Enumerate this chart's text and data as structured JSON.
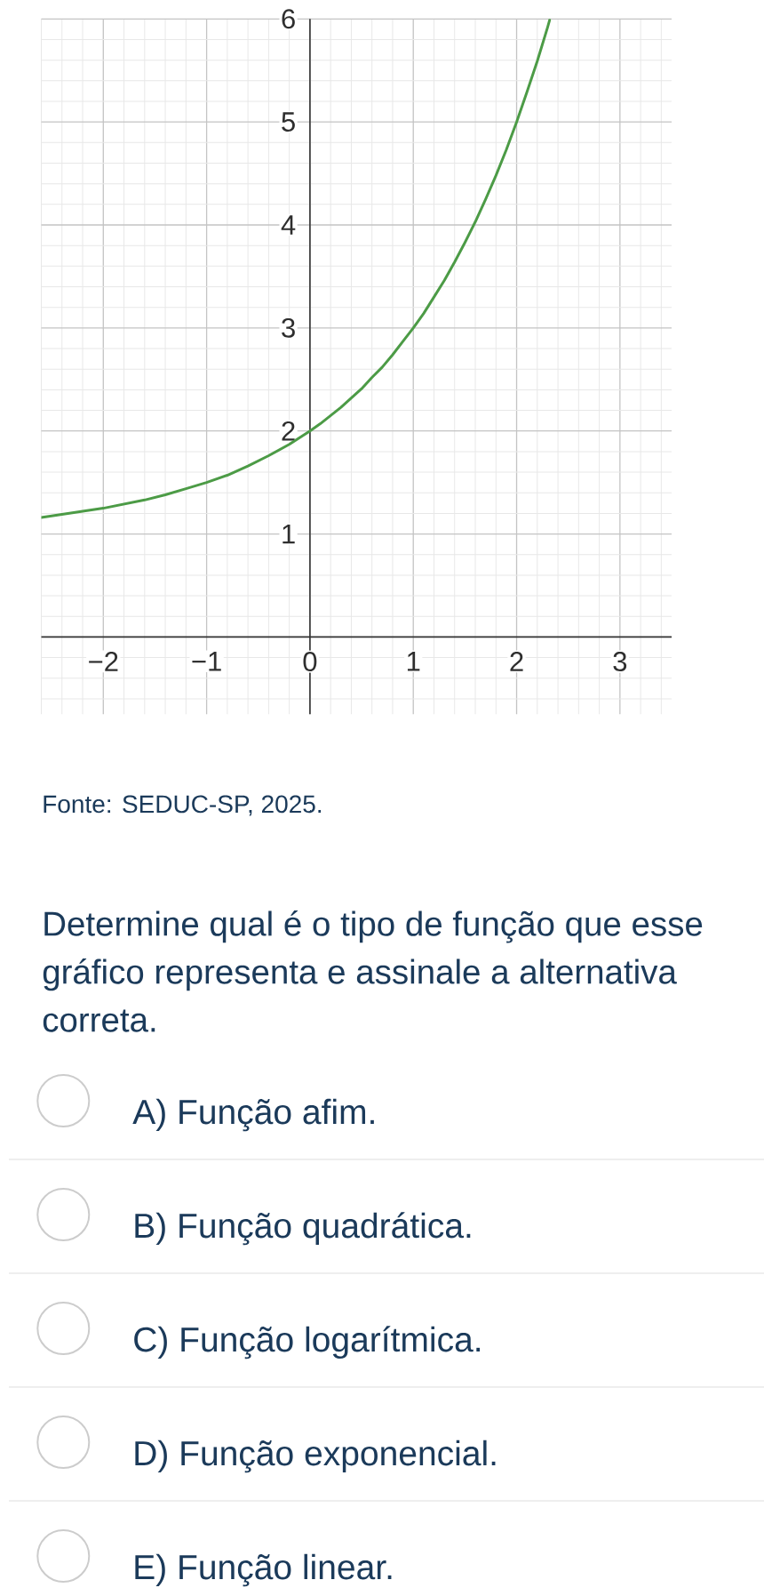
{
  "chart_data": {
    "type": "line",
    "x": [
      -2.6,
      -2.4,
      -2.2,
      -2.0,
      -1.8,
      -1.6,
      -1.4,
      -1.2,
      -1.0,
      -0.8,
      -0.6,
      -0.4,
      -0.2,
      0,
      0.1,
      0.2,
      0.3,
      0.4,
      0.5,
      0.6,
      0.7,
      0.8,
      0.9,
      1.0,
      1.1,
      1.2,
      1.3,
      1.4,
      1.5,
      1.6,
      1.7,
      1.8,
      1.9,
      2.0,
      2.1,
      2.2,
      2.3,
      2.32
    ],
    "values": [
      1.16,
      1.19,
      1.22,
      1.25,
      1.29,
      1.33,
      1.38,
      1.44,
      1.5,
      1.57,
      1.66,
      1.76,
      1.87,
      2.0,
      2.07,
      2.15,
      2.23,
      2.32,
      2.41,
      2.52,
      2.62,
      2.74,
      2.87,
      3.0,
      3.14,
      3.3,
      3.46,
      3.64,
      3.83,
      4.03,
      4.25,
      4.48,
      4.73,
      5.0,
      5.29,
      5.59,
      5.92,
      5.99
    ],
    "color": "#4c9b46",
    "xlim": [
      -2.6,
      3.5
    ],
    "ylim": [
      -0.75,
      6
    ],
    "xticks": [
      {
        "value": -2,
        "label": "−2"
      },
      {
        "value": -1,
        "label": "−1"
      },
      0,
      1,
      2,
      3
    ],
    "yticks": [
      1,
      2,
      3,
      4,
      5,
      6
    ],
    "grid": true,
    "annotations": [
      "Fonte: SEDUC-SP, 2025.",
      "Determine qual é o tipo de função que esse gráfico representa e assinale a alternativa correta.",
      "A) Função afim.",
      "B) Função quadrática.",
      "C) Função logarítmica.",
      "D) Função exponencial.",
      "E) Função linear."
    ]
  }
}
